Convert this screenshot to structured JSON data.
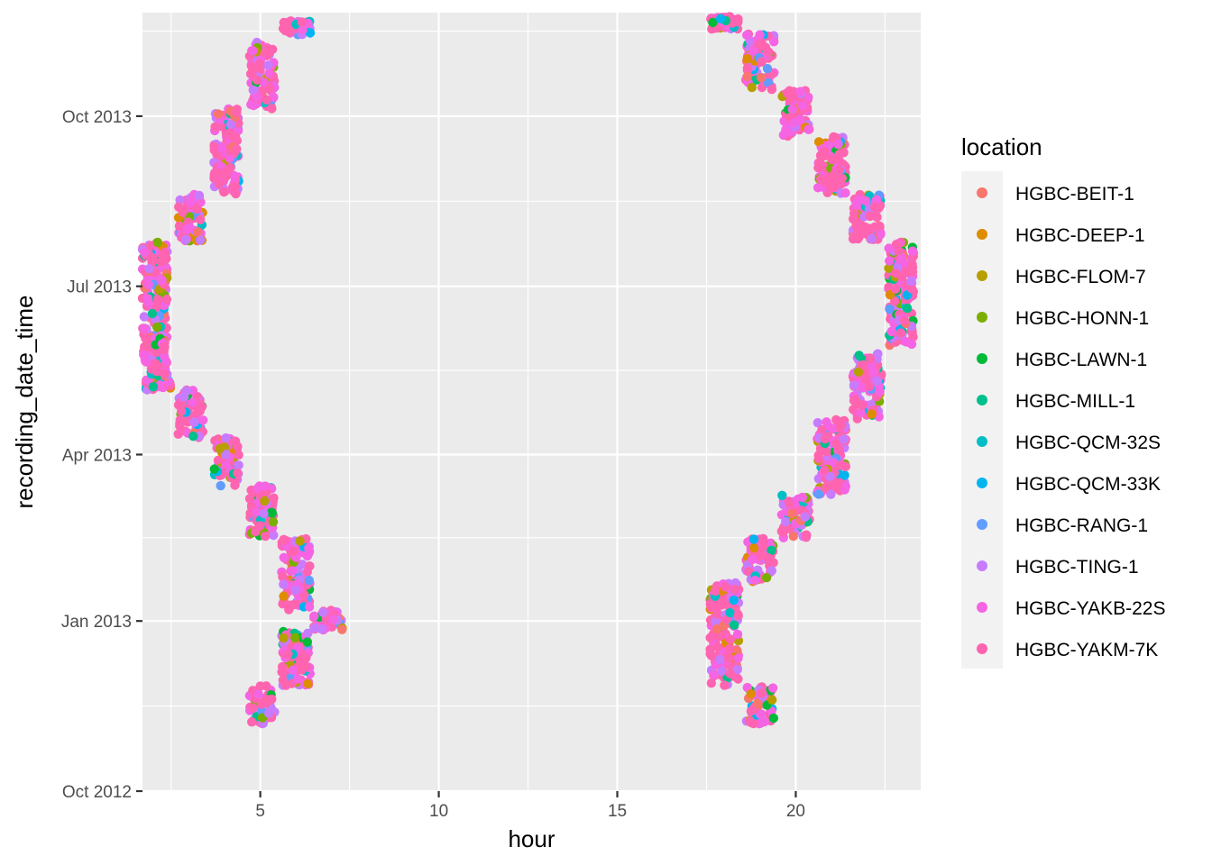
{
  "chart_data": {
    "type": "scatter",
    "xlabel": "hour",
    "ylabel": "recording_date_time",
    "xlim": [
      1.7,
      23.5
    ],
    "ylim": [
      "2012-10-01",
      "2013-11-26"
    ],
    "x_ticks": [
      5,
      10,
      15,
      20
    ],
    "y_ticks": [
      {
        "date": "2012-10-01",
        "label": "Oct 2012"
      },
      {
        "date": "2013-01-01",
        "label": "Jan 2013"
      },
      {
        "date": "2013-04-01",
        "label": "Apr 2013"
      },
      {
        "date": "2013-07-01",
        "label": "Jul 2013"
      },
      {
        "date": "2013-10-01",
        "label": "Oct 2013"
      }
    ],
    "grid": true,
    "legend": {
      "title": "location",
      "position": "right",
      "entries": [
        {
          "name": "HGBC-BEIT-1",
          "color": "#F8766D"
        },
        {
          "name": "HGBC-DEEP-1",
          "color": "#DE8C00"
        },
        {
          "name": "HGBC-FLOM-7",
          "color": "#B79F00"
        },
        {
          "name": "HGBC-HONN-1",
          "color": "#7CAE00"
        },
        {
          "name": "HGBC-LAWN-1",
          "color": "#00BA38"
        },
        {
          "name": "HGBC-MILL-1",
          "color": "#00C08B"
        },
        {
          "name": "HGBC-QCM-32S",
          "color": "#00BFC4"
        },
        {
          "name": "HGBC-QCM-33K",
          "color": "#00B4F0"
        },
        {
          "name": "HGBC-RANG-1",
          "color": "#619CFF"
        },
        {
          "name": "HGBC-TING-1",
          "color": "#C77CFF"
        },
        {
          "name": "HGBC-YAKB-22S",
          "color": "#F564E3"
        },
        {
          "name": "HGBC-YAKM-7K",
          "color": "#FF64B0"
        }
      ]
    },
    "point_clusters": [
      {
        "hour_min": 4.7,
        "hour_max": 5.4,
        "date_start": "2012-11-06",
        "date_end": "2012-11-27"
      },
      {
        "hour_min": 5.6,
        "hour_max": 6.4,
        "date_start": "2012-11-27",
        "date_end": "2012-12-27"
      },
      {
        "hour_min": 6.5,
        "hour_max": 7.3,
        "date_start": "2012-12-27",
        "date_end": "2013-01-07"
      },
      {
        "hour_min": 5.6,
        "hour_max": 6.4,
        "date_start": "2013-01-07",
        "date_end": "2013-02-15"
      },
      {
        "hour_min": 4.7,
        "hour_max": 5.4,
        "date_start": "2013-02-15",
        "date_end": "2013-03-15"
      },
      {
        "hour_min": 3.7,
        "hour_max": 4.4,
        "date_start": "2013-03-15",
        "date_end": "2013-04-10"
      },
      {
        "hour_min": 2.7,
        "hour_max": 3.4,
        "date_start": "2013-04-10",
        "date_end": "2013-05-06"
      },
      {
        "hour_min": 1.8,
        "hour_max": 2.5,
        "date_start": "2013-05-06",
        "date_end": "2013-05-12"
      },
      {
        "hour_min": 1.9,
        "hour_max": 2.4,
        "date_start": "2013-05-13",
        "date_end": "2013-05-19"
      },
      {
        "hour_min": 1.7,
        "hour_max": 2.4,
        "date_start": "2013-05-20",
        "date_end": "2013-07-25"
      },
      {
        "hour_min": 2.7,
        "hour_max": 3.4,
        "date_start": "2013-07-25",
        "date_end": "2013-08-20"
      },
      {
        "hour_min": 3.7,
        "hour_max": 4.4,
        "date_start": "2013-08-20",
        "date_end": "2013-10-05"
      },
      {
        "hour_min": 4.7,
        "hour_max": 5.4,
        "date_start": "2013-10-05",
        "date_end": "2013-11-10"
      },
      {
        "hour_min": 5.6,
        "hour_max": 6.4,
        "date_start": "2013-11-14",
        "date_end": "2013-11-22"
      },
      {
        "hour_min": 18.6,
        "hour_max": 19.4,
        "date_start": "2012-11-06",
        "date_end": "2012-11-27"
      },
      {
        "hour_min": 17.6,
        "hour_max": 18.4,
        "date_start": "2012-11-27",
        "date_end": "2013-01-22"
      },
      {
        "hour_min": 18.6,
        "hour_max": 19.4,
        "date_start": "2013-01-22",
        "date_end": "2013-02-15"
      },
      {
        "hour_min": 19.6,
        "hour_max": 20.4,
        "date_start": "2013-02-15",
        "date_end": "2013-03-10"
      },
      {
        "hour_min": 20.6,
        "hour_max": 21.4,
        "date_start": "2013-03-10",
        "date_end": "2013-04-20"
      },
      {
        "hour_min": 21.6,
        "hour_max": 22.4,
        "date_start": "2013-04-20",
        "date_end": "2013-05-15"
      },
      {
        "hour_min": 21.7,
        "hour_max": 22.3,
        "date_start": "2013-05-15",
        "date_end": "2013-05-26"
      },
      {
        "hour_min": 22.6,
        "hour_max": 23.3,
        "date_start": "2013-05-30",
        "date_end": "2013-07-25"
      },
      {
        "hour_min": 21.6,
        "hour_max": 22.4,
        "date_start": "2013-07-25",
        "date_end": "2013-08-20"
      },
      {
        "hour_min": 20.6,
        "hour_max": 21.4,
        "date_start": "2013-08-20",
        "date_end": "2013-09-20"
      },
      {
        "hour_min": 19.6,
        "hour_max": 20.4,
        "date_start": "2013-09-20",
        "date_end": "2013-10-15"
      },
      {
        "hour_min": 18.6,
        "hour_max": 19.4,
        "date_start": "2013-10-15",
        "date_end": "2013-11-15"
      },
      {
        "hour_min": 17.6,
        "hour_max": 18.4,
        "date_start": "2013-11-17",
        "date_end": "2013-11-24"
      }
    ]
  }
}
